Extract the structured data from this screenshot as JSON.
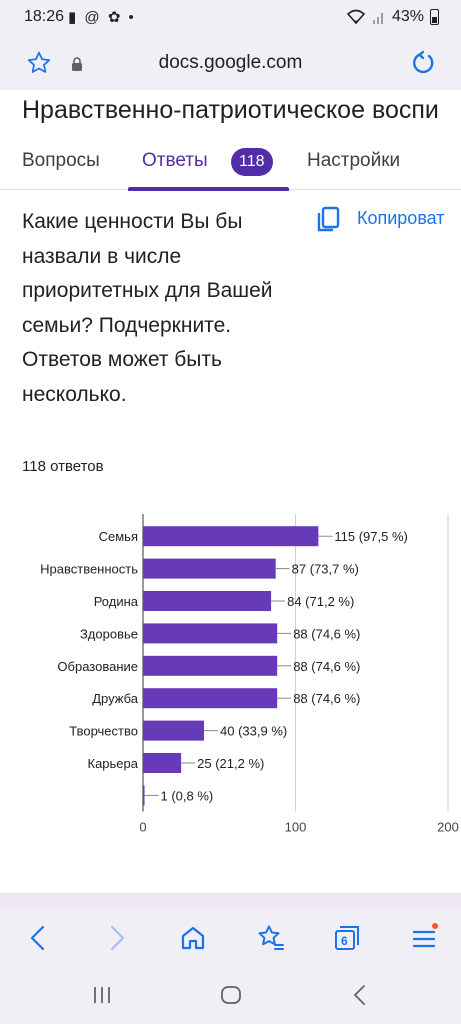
{
  "status_bar": {
    "time": "18:26",
    "left_icons": "▮ @ ✿ •",
    "battery": "43%"
  },
  "browser": {
    "url": "docs.google.com",
    "tab_count": "6"
  },
  "doc": {
    "title": "Нравственно-патриотическое воспи"
  },
  "tabs": {
    "questions": "Вопросы",
    "answers": "Ответы",
    "answers_count": "118",
    "settings": "Настройки"
  },
  "question": {
    "text": "Какие ценности Вы бы назвали в числе приоритетных для Вашей семьи? Подчеркните. Ответов может быть несколько.",
    "copy_label": "Копироват",
    "responses": "118 ответов"
  },
  "chart_data": {
    "type": "bar",
    "orientation": "horizontal",
    "categories": [
      "Семья",
      "Нравственность",
      "Родина",
      "Здоровье",
      "Образование",
      "Дружба",
      "Творчество",
      "Карьера",
      ""
    ],
    "values": [
      115,
      87,
      84,
      88,
      88,
      88,
      40,
      25,
      1
    ],
    "labels": [
      "115 (97,5 %)",
      "87 (73,7 %)",
      "84 (71,2 %)",
      "88 (74,6 %)",
      "88 (74,6 %)",
      "88 (74,6 %)",
      "40 (33,9 %)",
      "25 (21,2 %)",
      "1 (0,8 %)"
    ],
    "xlim": [
      0,
      200
    ],
    "xticks": [
      "0",
      "100",
      "200"
    ],
    "grid": true,
    "color": "#673ab7"
  },
  "colors": {
    "accent": "#512da8",
    "link": "#1a73e8",
    "bar": "#673ab7"
  }
}
